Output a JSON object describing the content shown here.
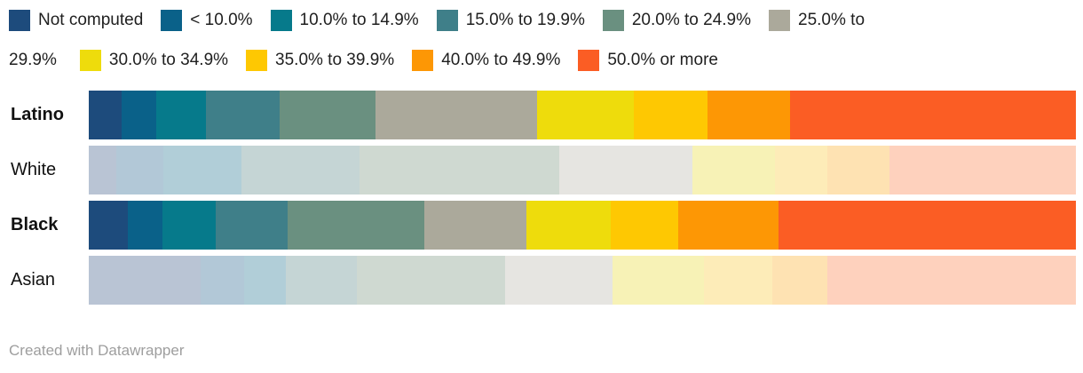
{
  "palette": {
    "saturated": [
      "#1d4b7c",
      "#0a6189",
      "#067a8b",
      "#3f7f89",
      "#6a9080",
      "#aba99b",
      "#eedc0c",
      "#fec802",
      "#fd9705",
      "#fb5d24"
    ],
    "muted": [
      "#b9c4d4",
      "#b2c8d7",
      "#b1ced8",
      "#c5d5d5",
      "#cfd9d1",
      "#e6e5e1",
      "#f7f2b6",
      "#fdecb8",
      "#fee2b2",
      "#fed1bd"
    ]
  },
  "legend": {
    "rows": [
      {
        "items": [
          {
            "swatch_index": 0,
            "label": "Not computed"
          },
          {
            "swatch_index": 1,
            "label": "< 10.0%"
          },
          {
            "swatch_index": 2,
            "label": "10.0% to 14.9%"
          },
          {
            "swatch_index": 3,
            "label": "15.0% to 19.9%"
          },
          {
            "swatch_index": 4,
            "label": "20.0% to 24.9%"
          },
          {
            "swatch_index": 5,
            "label": "25.0% to"
          }
        ]
      },
      {
        "items": [
          {
            "swatch_index": null,
            "label": "29.9%"
          },
          {
            "swatch_index": 6,
            "label": "30.0% to 34.9%"
          },
          {
            "swatch_index": 7,
            "label": "35.0% to 39.9%"
          },
          {
            "swatch_index": 8,
            "label": "40.0% to 49.9%"
          },
          {
            "swatch_index": 9,
            "label": "50.0% or more"
          }
        ]
      }
    ]
  },
  "chart_data": {
    "type": "bar",
    "stacked": true,
    "orientation": "horizontal",
    "legend_position": "top",
    "grid": false,
    "categories": [
      "Not computed",
      "< 10.0%",
      "10.0% to 14.9%",
      "15.0% to 19.9%",
      "20.0% to 24.9%",
      "25.0% to 29.9%",
      "30.0% to 34.9%",
      "35.0% to 39.9%",
      "40.0% to 49.9%",
      "50.0% or more"
    ],
    "value_unit": "percent of row (approx., read from bar widths)",
    "series": [
      {
        "name": "Latino",
        "emphasized": true,
        "values": [
          3.33,
          3.51,
          5.04,
          7.46,
          9.71,
          16.37,
          9.8,
          7.46,
          8.36,
          28.96
        ]
      },
      {
        "name": "White",
        "emphasized": false,
        "values": [
          2.79,
          4.77,
          7.91,
          11.96,
          20.23,
          13.49,
          8.36,
          5.31,
          6.29,
          18.89
        ]
      },
      {
        "name": "Black",
        "emphasized": true,
        "values": [
          3.96,
          3.51,
          5.4,
          7.28,
          13.85,
          10.34,
          8.54,
          6.83,
          10.16,
          30.13
        ]
      },
      {
        "name": "Asian",
        "emphasized": false,
        "values": [
          11.33,
          4.41,
          4.23,
          7.19,
          15.02,
          10.88,
          9.26,
          6.92,
          5.58,
          25.18
        ]
      }
    ]
  },
  "footer": {
    "credit": "Created with Datawrapper"
  }
}
